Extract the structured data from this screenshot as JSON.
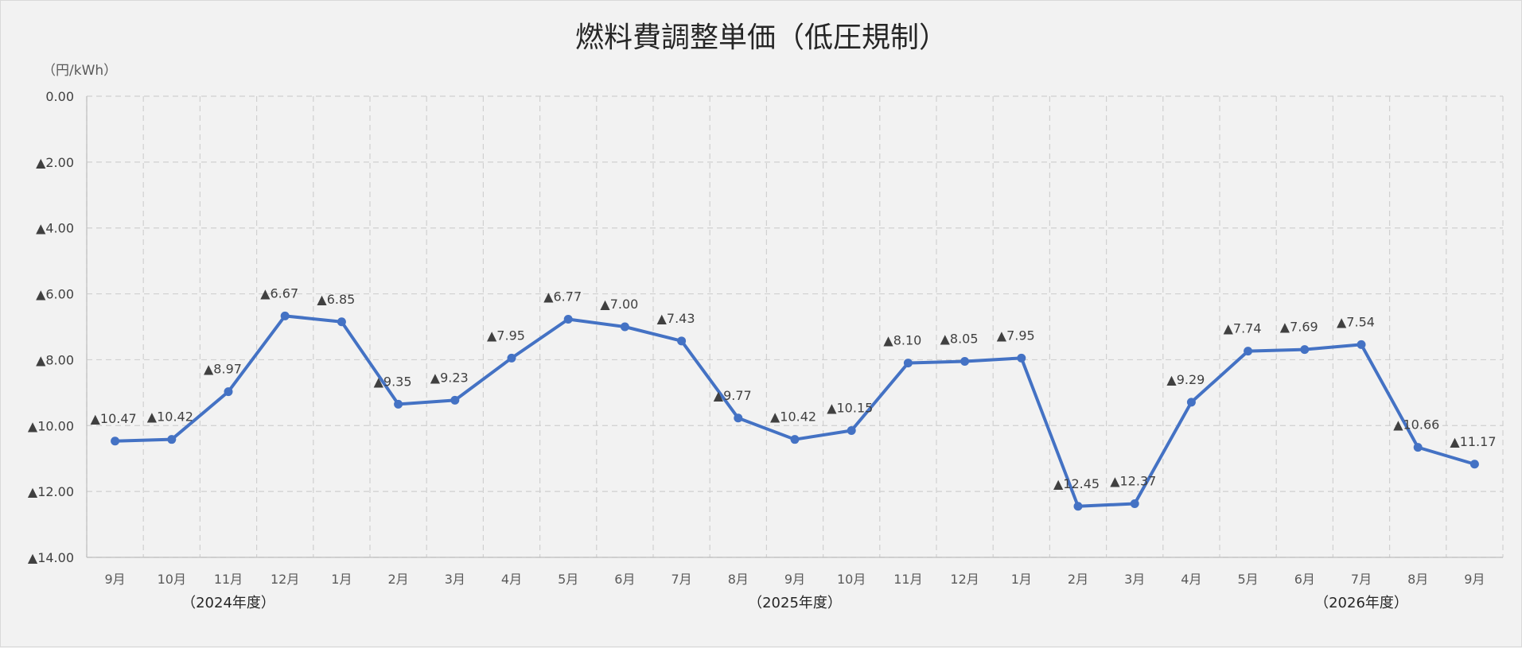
{
  "chart_data": {
    "type": "line",
    "title": "燃料費調整単価（低圧規制）",
    "unit_label": "（円/kWh）",
    "value_prefix": "▲",
    "ylim": [
      -14,
      0
    ],
    "yticks": [
      0,
      -2,
      -4,
      -6,
      -8,
      -10,
      -12,
      -14
    ],
    "ytick_labels": [
      "0.00",
      "▲2.00",
      "▲4.00",
      "▲6.00",
      "▲8.00",
      "▲10.00",
      "▲12.00",
      "▲14.00"
    ],
    "grid": true,
    "legend": "none",
    "categories": [
      "9月",
      "10月",
      "11月",
      "12月",
      "1月",
      "2月",
      "3月",
      "4月",
      "5月",
      "6月",
      "7月",
      "8月",
      "9月",
      "10月",
      "11月",
      "12月",
      "1月",
      "2月",
      "3月",
      "4月",
      "5月",
      "6月",
      "7月",
      "8月",
      "9月"
    ],
    "fiscal_years": [
      {
        "label": "（2024年度）",
        "center_index": 2
      },
      {
        "label": "（2025年度）",
        "center_index": 12
      },
      {
        "label": "（2026年度）",
        "center_index": 22
      }
    ],
    "series": [
      {
        "color": "#4472c4",
        "values": [
          -10.47,
          -10.42,
          -8.97,
          -6.67,
          -6.85,
          -9.35,
          -9.23,
          -7.95,
          -6.77,
          -7.0,
          -7.43,
          -9.77,
          -10.42,
          -10.15,
          -8.1,
          -8.05,
          -7.95,
          -12.45,
          -12.37,
          -9.29,
          -7.74,
          -7.69,
          -7.54,
          -10.66,
          -11.17
        ],
        "data_labels": [
          "▲10.47",
          "▲10.42",
          "▲8.97",
          "▲6.67",
          "▲6.85",
          "▲9.35",
          "▲9.23",
          "▲7.95",
          "▲6.77",
          "▲7.00",
          "▲7.43",
          "▲9.77",
          "▲10.42",
          "▲10.15",
          "▲8.10",
          "▲8.05",
          "▲7.95",
          "▲12.45",
          "▲12.37",
          "▲9.29",
          "▲7.74",
          "▲7.69",
          "▲7.54",
          "▲10.66",
          "▲11.17"
        ]
      }
    ]
  }
}
